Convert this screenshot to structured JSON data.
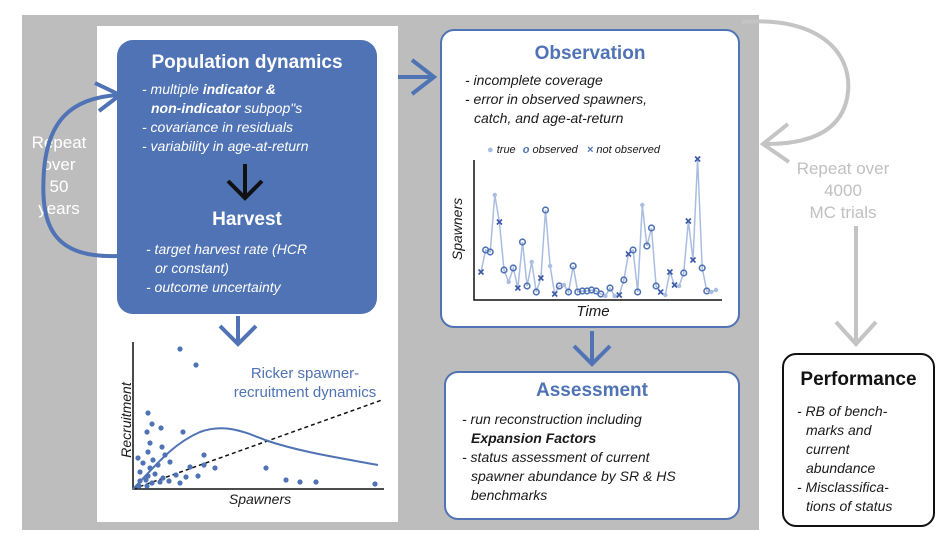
{
  "population": {
    "title": "Population dynamics",
    "bullets": [
      {
        "segments": [
          {
            "text": "- multiple ",
            "bold": false
          },
          {
            "text": "indicator &",
            "bold": true
          }
        ]
      },
      {
        "segments": [
          {
            "text": "non-indicator",
            "bold": true
          },
          {
            "text": " subpop\"s",
            "bold": false
          }
        ]
      },
      {
        "segments": [
          {
            "text": "- covariance in residuals",
            "bold": false
          }
        ]
      },
      {
        "segments": [
          {
            "text": "- variability in age-at-return",
            "bold": false
          }
        ]
      }
    ]
  },
  "harvest": {
    "title": "Harvest",
    "bullets": [
      "- target harvest rate (HCR",
      "  or constant)",
      "- outcome uncertainty"
    ]
  },
  "repeat_years": {
    "lines": [
      "Repeat",
      "over",
      "50",
      "years"
    ]
  },
  "repeat_trials": {
    "lines": [
      "Repeat over",
      "4000",
      "MC trials"
    ]
  },
  "observation": {
    "title": "Observation",
    "bullets": [
      "- incomplete coverage",
      "- error in observed spawners,",
      "  catch, and age-at-return"
    ],
    "legend": {
      "true": "true",
      "observed": "observed",
      "not_observed": "not observed"
    },
    "xlabel": "Time",
    "ylabel": "Spawners"
  },
  "ricker": {
    "label_line1": "Ricker spawner-",
    "label_line2": "recruitment dynamics",
    "xlabel": "Spawners",
    "ylabel": "Recruitment"
  },
  "assessment": {
    "title": "Assessment",
    "bullets": [
      {
        "segments": [
          {
            "text": "- run reconstruction including",
            "bold": false
          }
        ]
      },
      {
        "segments": [
          {
            "text": "  ",
            "bold": false
          },
          {
            "text": "Expansion Factors",
            "bold": true
          }
        ]
      },
      {
        "segments": [
          {
            "text": "- status assessment of current",
            "bold": false
          }
        ]
      },
      {
        "segments": [
          {
            "text": "  spawner abundance by SR & HS",
            "bold": false
          }
        ]
      },
      {
        "segments": [
          {
            "text": "  benchmarks",
            "bold": false
          }
        ]
      }
    ]
  },
  "performance": {
    "title": "Performance",
    "bullets": [
      "- RB of bench-",
      "  marks and",
      "  current",
      "  abundance",
      "- Misclassifica-",
      "  tions of status"
    ]
  },
  "colors": {
    "accent": "#4f73b4",
    "light": "#a9bde0",
    "gray_arrow": "#c4c4c4",
    "panel": "#bdbdbd"
  },
  "icons": {
    "cycle_left": "circular-arrow",
    "cycle_right": "circular-arrow",
    "down_arrows": "chevron-arrow-down",
    "right_arrow": "chevron-arrow-right"
  }
}
